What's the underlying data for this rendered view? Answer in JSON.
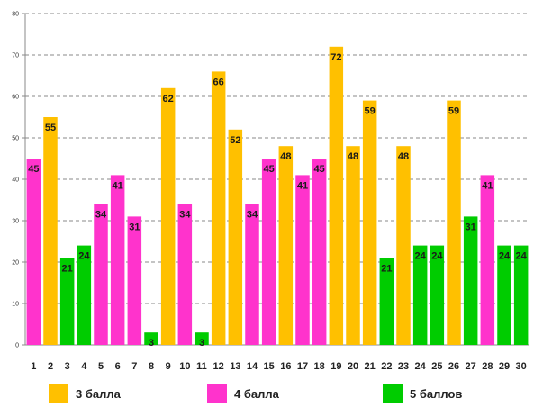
{
  "chart_data": {
    "type": "bar",
    "categories": [
      "1",
      "2",
      "3",
      "4",
      "5",
      "6",
      "7",
      "8",
      "9",
      "10",
      "11",
      "12",
      "13",
      "14",
      "15",
      "16",
      "17",
      "18",
      "19",
      "20",
      "21",
      "22",
      "23",
      "24",
      "25",
      "26",
      "27",
      "28",
      "29",
      "30"
    ],
    "values": [
      45,
      55,
      21,
      24,
      34,
      41,
      31,
      3,
      62,
      34,
      3,
      66,
      52,
      34,
      45,
      48,
      41,
      45,
      72,
      48,
      59,
      21,
      48,
      24,
      24,
      59,
      31,
      41,
      24,
      24
    ],
    "groups": [
      "4 балла",
      "3 балла",
      "5 баллов",
      "5 баллов",
      "4 балла",
      "4 балла",
      "4 балла",
      "5 баллов",
      "3 балла",
      "4 балла",
      "5 баллов",
      "3 балла",
      "3 балла",
      "4 балла",
      "4 балла",
      "3 балла",
      "4 балла",
      "4 балла",
      "3 балла",
      "3 балла",
      "3 балла",
      "5 баллов",
      "3 балла",
      "5 баллов",
      "5 баллов",
      "3 балла",
      "5 баллов",
      "4 балла",
      "5 баллов",
      "5 баллов"
    ],
    "legend": [
      {
        "name": "3 балла",
        "color": "#FFC000"
      },
      {
        "name": "4 балла",
        "color": "#FF33CC"
      },
      {
        "name": "5 баллов",
        "color": "#00CC00"
      }
    ],
    "ylim": [
      0,
      80
    ],
    "yticks": [
      0,
      10,
      20,
      30,
      40,
      50,
      60,
      70,
      80
    ],
    "grid": true,
    "legend_position": "bottom",
    "title": "",
    "xlabel": "",
    "ylabel": ""
  }
}
